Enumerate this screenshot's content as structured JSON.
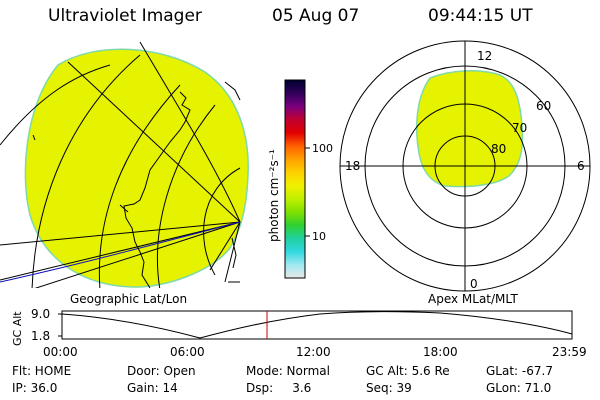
{
  "header": {
    "instrument": "Ultraviolet Imager",
    "date": "05 Aug 07",
    "time": "09:44:15 UT"
  },
  "colorbar": {
    "unit_label": "photon cm⁻²s⁻¹",
    "ticks": [
      "100",
      "10"
    ],
    "colors": [
      "#000030",
      "#30005a",
      "#7a0080",
      "#c00030",
      "#e00000",
      "#ff6000",
      "#ffa000",
      "#ffd000",
      "#f0f000",
      "#c0f000",
      "#80e000",
      "#30d030",
      "#20d0a0",
      "#30d8e0",
      "#a0e8f0",
      "#e8e8e8"
    ]
  },
  "geo_panel": {
    "label": "Geographic Lat/Lon",
    "fill_color": "#e5f200",
    "edge_color": "#7fd9a8"
  },
  "polar_panel": {
    "label": "Apex MLat/MLT",
    "mlt_labels": {
      "top": "12",
      "left": "18",
      "right": "6",
      "bottom": "0"
    },
    "lat_labels": [
      "60",
      "70",
      "80"
    ]
  },
  "altitude_plot": {
    "ylabel": "GC Alt",
    "yticks": [
      "9.0",
      "1.8"
    ],
    "xticks": [
      "00:00",
      "06:00",
      "12:00",
      "18:00",
      "23:59"
    ],
    "marker_color": "#cc0000"
  },
  "info": {
    "flt": "Flt: HOME",
    "ip": "IP: 36.0",
    "door": "Door: Open",
    "gain": "Gain: 14",
    "mode": "Mode: Normal",
    "dsp": "Dsp:     3.6",
    "gcalt": "GC Alt: 5.6 Re",
    "seq": "Seq: 39",
    "glat": "GLat: -67.7",
    "glon": "GLon: 71.0"
  }
}
